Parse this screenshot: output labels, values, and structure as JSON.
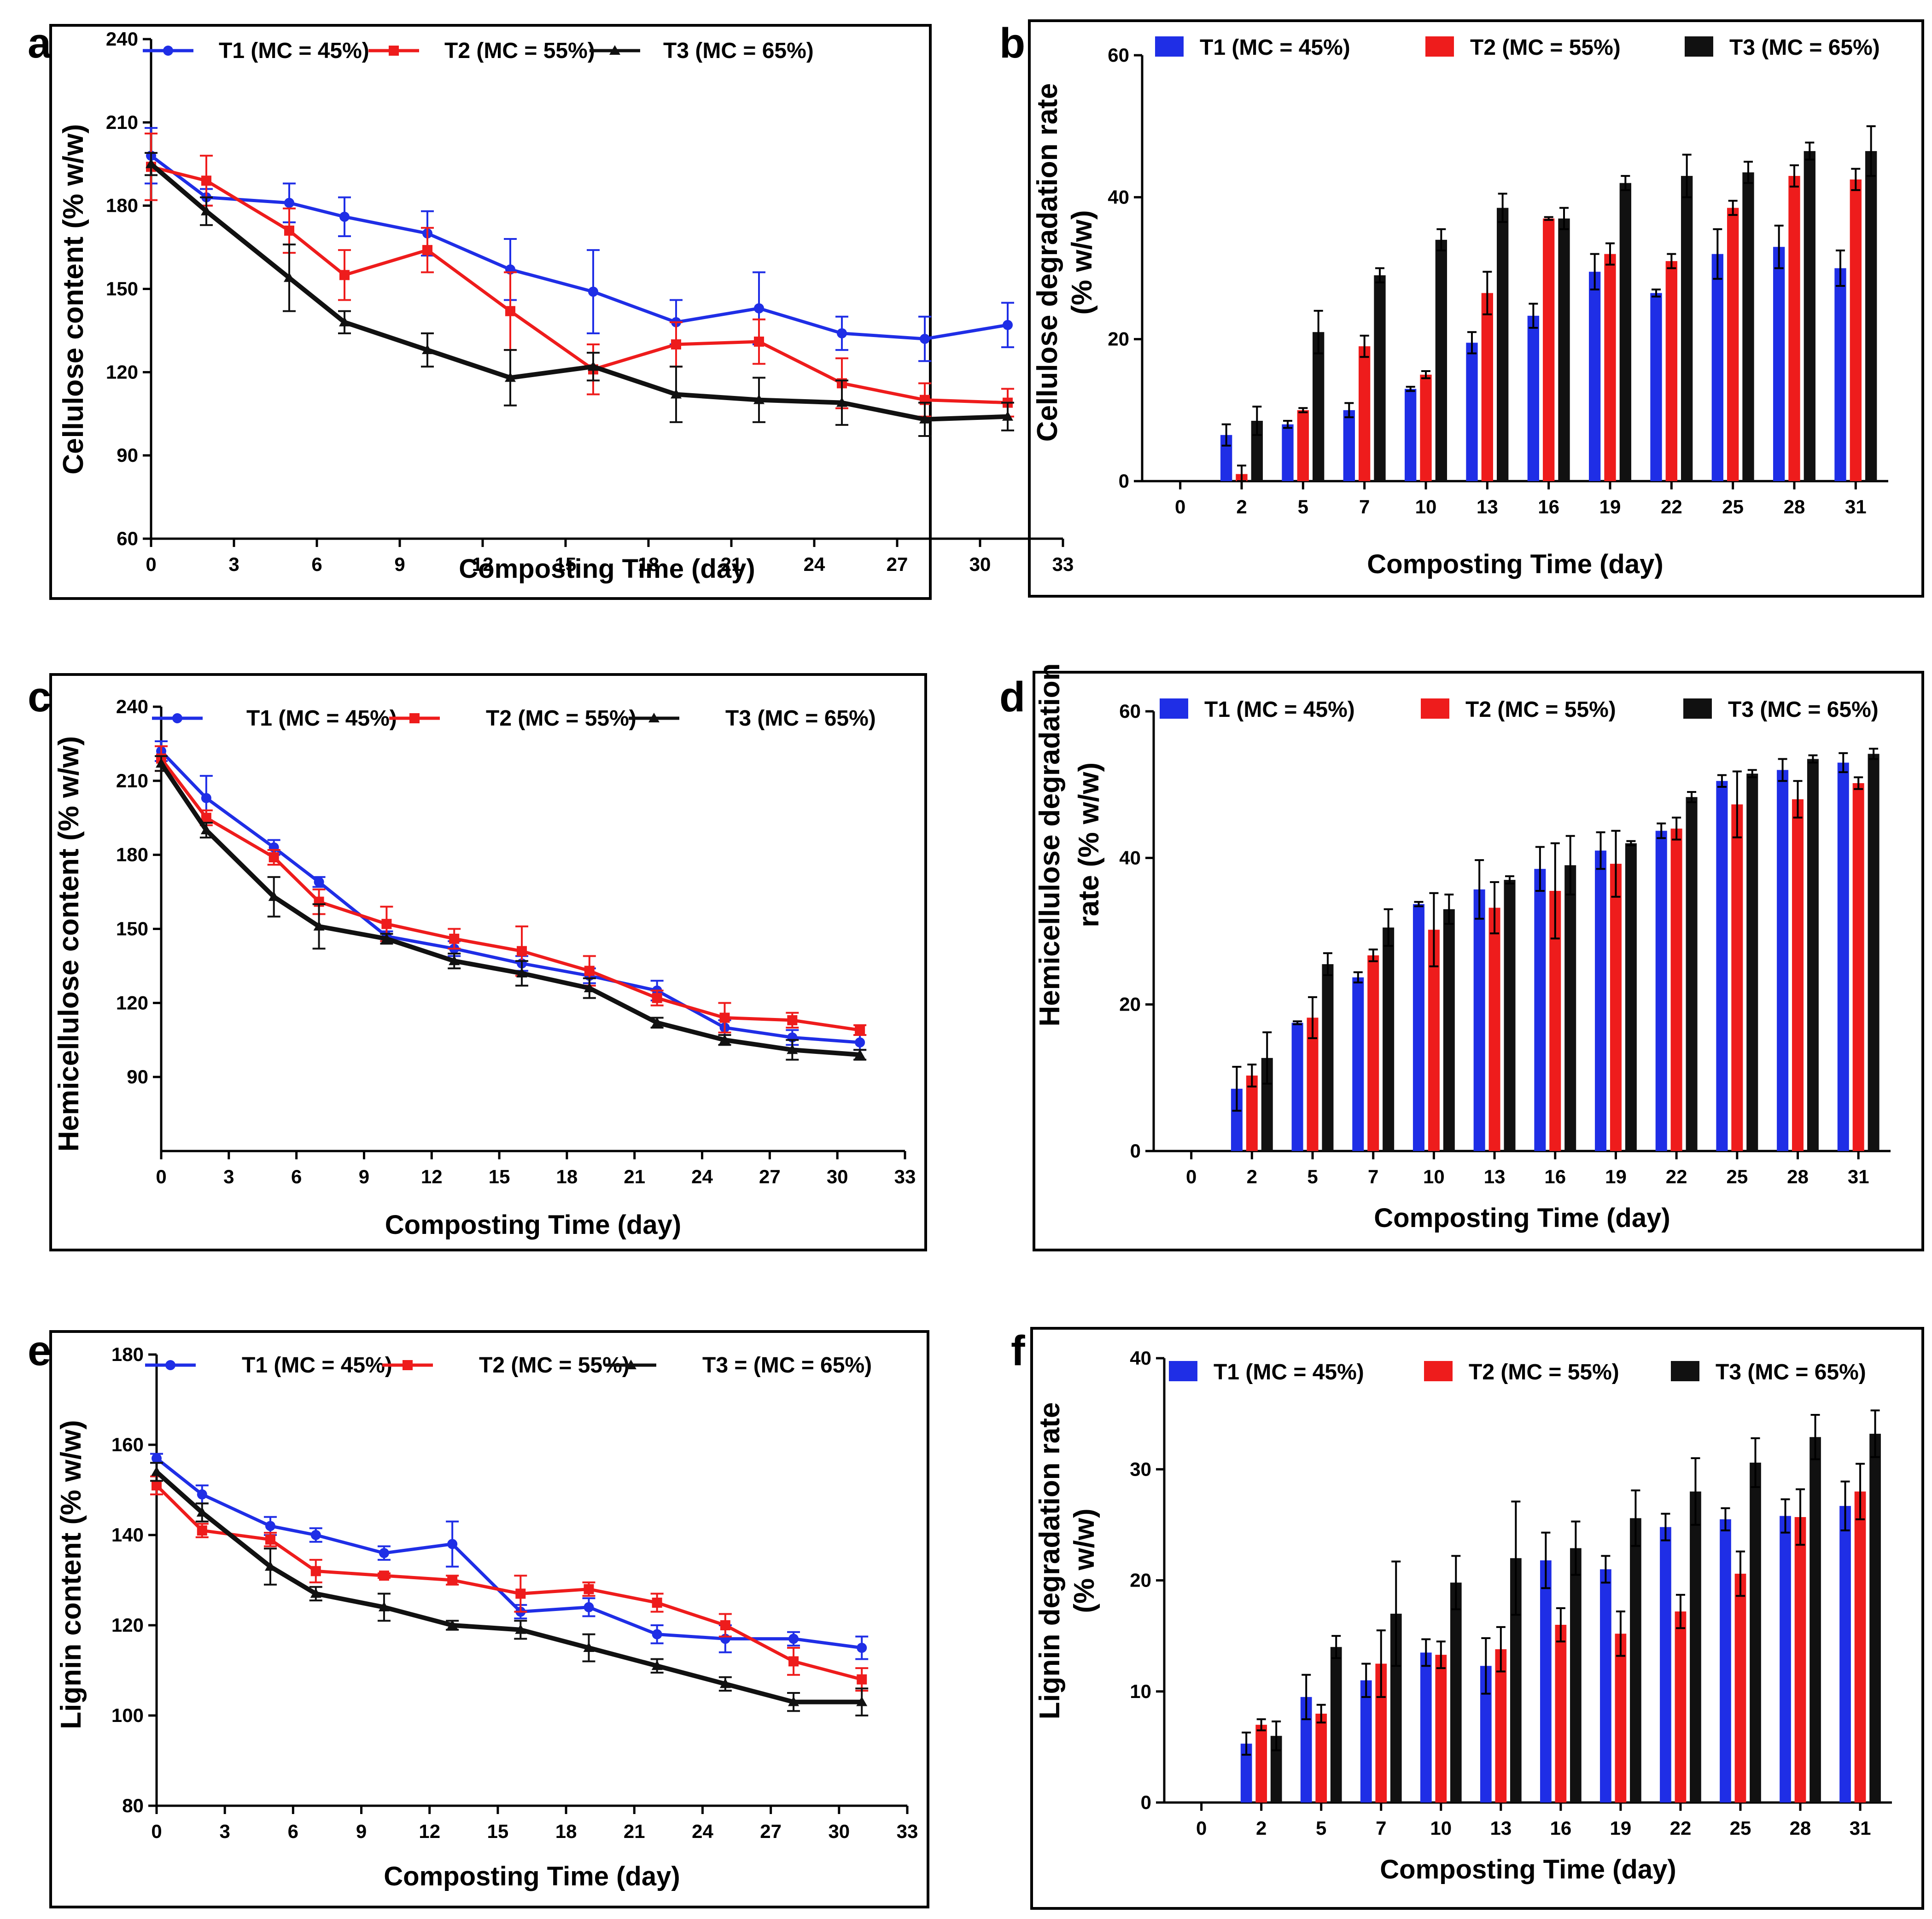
{
  "figure": {
    "colors": {
      "T1": "#1f2ee6",
      "T2": "#ee1c1c",
      "T3": "#111111",
      "axis": "#000000",
      "frame": "#000000"
    }
  },
  "chart_data": [
    {
      "id": "a",
      "panel_letter": "a",
      "type": "line",
      "xlabel": "Composting Time (day)",
      "ylabel": "Cellulose content (% w/w)",
      "xlim": [
        0,
        33
      ],
      "xticks": [
        0,
        3,
        6,
        9,
        12,
        15,
        18,
        21,
        24,
        27,
        30,
        33
      ],
      "ylim": [
        60,
        240
      ],
      "yticks": [
        60,
        90,
        120,
        150,
        180,
        210,
        240
      ],
      "x": [
        0,
        2,
        5,
        7,
        10,
        13,
        16,
        19,
        22,
        25,
        28,
        31
      ],
      "series": [
        {
          "name": "T1 (MC = 45%)",
          "key": "T1",
          "marker": "circle",
          "values": [
            198,
            183,
            181,
            176,
            170,
            157,
            149,
            138,
            143,
            134,
            132,
            137
          ],
          "errors": [
            10,
            3,
            7,
            7,
            8,
            11,
            15,
            8,
            13,
            6,
            8,
            8
          ]
        },
        {
          "name": "T2 (MC = 55%)",
          "key": "T2",
          "marker": "square",
          "values": [
            194,
            189,
            171,
            155,
            164,
            142,
            121,
            130,
            131,
            116,
            110,
            109
          ],
          "errors": [
            12,
            9,
            8,
            9,
            8,
            14,
            9,
            8,
            8,
            9,
            6,
            5
          ]
        },
        {
          "name": "T3 (MC = 65%)",
          "key": "T3",
          "marker": "triangle",
          "values": [
            195,
            178,
            154,
            138,
            128,
            118,
            122,
            112,
            110,
            109,
            103,
            104
          ],
          "errors": [
            4,
            5,
            12,
            4,
            6,
            10,
            5,
            10,
            8,
            8,
            6,
            5
          ]
        }
      ]
    },
    {
      "id": "b",
      "panel_letter": "b",
      "type": "bar",
      "xlabel": "Composting Time (day)",
      "ylabel": [
        "Cellulose degradation rate",
        "(% w/w)"
      ],
      "categories": [
        "0",
        "2",
        "5",
        "7",
        "10",
        "13",
        "16",
        "19",
        "22",
        "25",
        "28",
        "31"
      ],
      "ylim": [
        0,
        60
      ],
      "yticks": [
        0,
        20,
        40,
        60
      ],
      "series": [
        {
          "name": "T1 (MC = 45%)",
          "key": "T1",
          "values": [
            0,
            6.5,
            8,
            10,
            13,
            19.5,
            23.3,
            29.5,
            26.5,
            32,
            33,
            30
          ],
          "errors": [
            0,
            1.5,
            0.5,
            1,
            0.3,
            1.5,
            1.7,
            2.5,
            0.5,
            3.5,
            3,
            2.5
          ]
        },
        {
          "name": "T2 (MC = 55%)",
          "key": "T2",
          "values": [
            0,
            1,
            10,
            19,
            15,
            26.5,
            37,
            32,
            31,
            38.5,
            43,
            42.5
          ],
          "errors": [
            0,
            1.2,
            0.3,
            1.5,
            0.5,
            3,
            0.2,
            1.5,
            1,
            1,
            1.5,
            1.5
          ]
        },
        {
          "name": "T3 (MC = 65%)",
          "key": "T3",
          "values": [
            0,
            8.5,
            21,
            29,
            34,
            38.5,
            37,
            42,
            43,
            43.5,
            46.5,
            46.5
          ],
          "errors": [
            0,
            2,
            3,
            1,
            1.5,
            2,
            1.5,
            1,
            3,
            1.5,
            1.2,
            3.5
          ]
        }
      ]
    },
    {
      "id": "c",
      "panel_letter": "c",
      "type": "line",
      "xlabel": "Composting Time (day)",
      "ylabel": "Hemicellulose content (% w/w)",
      "xlim": [
        0,
        33
      ],
      "xticks": [
        0,
        3,
        6,
        9,
        12,
        15,
        18,
        21,
        24,
        27,
        30,
        33
      ],
      "ylim": [
        60,
        240
      ],
      "yticks": [
        90,
        120,
        150,
        180,
        210,
        240
      ],
      "x": [
        0,
        2,
        5,
        7,
        10,
        13,
        16,
        19,
        22,
        25,
        28,
        31
      ],
      "series": [
        {
          "name": "T1 (MC = 45%)",
          "key": "T1",
          "marker": "circle",
          "values": [
            222,
            203,
            183,
            169,
            147,
            142,
            136,
            131,
            125,
            110,
            106,
            104
          ],
          "errors": [
            4,
            9,
            3,
            2,
            2,
            3,
            3,
            3,
            4,
            3,
            3,
            3
          ]
        },
        {
          "name": "T2 (MC = 55%)",
          "key": "T2",
          "marker": "square",
          "values": [
            219,
            195,
            179,
            161,
            152,
            146,
            141,
            133,
            122,
            114,
            113,
            109
          ],
          "errors": [
            5,
            3,
            3,
            5,
            7,
            4,
            10,
            6,
            3,
            6,
            3,
            2
          ]
        },
        {
          "name": "T3 (MC = 65%)",
          "key": "T3",
          "marker": "triangle",
          "values": [
            217,
            190,
            163,
            151,
            146,
            137,
            132,
            126,
            112,
            105,
            101,
            99
          ],
          "errors": [
            3,
            3,
            8,
            9,
            2,
            3,
            5,
            4,
            2,
            2,
            4,
            2
          ]
        }
      ]
    },
    {
      "id": "d",
      "panel_letter": "d",
      "type": "bar",
      "xlabel": "Composting Time (day)",
      "ylabel": [
        "Hemicellulose degradation",
        "rate (% w/w)"
      ],
      "categories": [
        "0",
        "2",
        "5",
        "7",
        "10",
        "13",
        "16",
        "19",
        "22",
        "25",
        "28",
        "31"
      ],
      "ylim": [
        0,
        60
      ],
      "yticks": [
        0,
        20,
        40,
        60
      ],
      "series": [
        {
          "name": "T1 (MC = 45%)",
          "key": "T1",
          "values": [
            0,
            8.5,
            17.5,
            23.7,
            33.7,
            35.7,
            38.5,
            41,
            43.7,
            50.5,
            52,
            53
          ],
          "errors": [
            0,
            3,
            0.2,
            0.7,
            0.3,
            4,
            3,
            2.5,
            1,
            0.8,
            1.5,
            1.3
          ]
        },
        {
          "name": "T2 (MC = 55%)",
          "key": "T2",
          "values": [
            0,
            10.3,
            18.2,
            26.7,
            30.2,
            33.2,
            35.5,
            39.2,
            44,
            47.3,
            48,
            50.2
          ],
          "errors": [
            0,
            1.5,
            2.8,
            0.8,
            5,
            3.5,
            6.5,
            4.5,
            1.5,
            4.5,
            2.5,
            0.8
          ]
        },
        {
          "name": "T3 (MC = 65%)",
          "key": "T3",
          "values": [
            0,
            12.7,
            25.5,
            30.5,
            33,
            37,
            39,
            42,
            48.3,
            51.5,
            53.5,
            54.2
          ],
          "errors": [
            0,
            3.5,
            1.5,
            2.5,
            2,
            0.5,
            4,
            0.3,
            0.7,
            0.5,
            0.5,
            0.7
          ]
        }
      ]
    },
    {
      "id": "e",
      "panel_letter": "e",
      "type": "line",
      "xlabel": "Composting Time (day)",
      "ylabel": "Lignin content (% w/w)",
      "xlim": [
        0,
        33
      ],
      "xticks": [
        0,
        3,
        6,
        9,
        12,
        15,
        18,
        21,
        24,
        27,
        30,
        33
      ],
      "ylim": [
        80,
        180
      ],
      "yticks": [
        80,
        100,
        120,
        140,
        160,
        180
      ],
      "x": [
        0,
        2,
        5,
        7,
        10,
        13,
        16,
        19,
        22,
        25,
        28,
        31
      ],
      "series": [
        {
          "name": "T1 (MC = 45%)",
          "key": "T1",
          "marker": "circle",
          "values": [
            157,
            149,
            142,
            140,
            136,
            138,
            123,
            124,
            118,
            117,
            117,
            115
          ],
          "errors": [
            1,
            2,
            2,
            1.5,
            1.5,
            5,
            1.5,
            2,
            2,
            3,
            1.5,
            2.5
          ]
        },
        {
          "name": "T2 (MC = 55%)",
          "key": "T2",
          "marker": "square",
          "values": [
            151,
            141,
            139,
            132,
            131,
            130,
            127,
            128,
            125,
            120,
            112,
            108
          ],
          "errors": [
            2,
            1.5,
            1.5,
            2.5,
            0.5,
            1,
            4,
            1.5,
            2,
            2.5,
            3,
            2.5
          ]
        },
        {
          "name": "T3 = (MC = 65%)",
          "key": "T3",
          "marker": "triangle",
          "values": [
            154,
            145,
            133,
            127,
            124,
            120,
            119,
            115,
            111,
            107,
            103,
            103
          ],
          "errors": [
            2,
            2,
            4,
            1.5,
            3,
            1,
            2,
            3,
            1.5,
            1.5,
            2,
            3
          ]
        }
      ]
    },
    {
      "id": "f",
      "panel_letter": "f",
      "type": "bar",
      "xlabel": "Composting Time (day)",
      "ylabel": [
        "Lignin degradation rate",
        "(% w/w)"
      ],
      "categories": [
        "0",
        "2",
        "5",
        "7",
        "10",
        "13",
        "16",
        "19",
        "22",
        "25",
        "28",
        "31"
      ],
      "ylim": [
        0,
        40
      ],
      "yticks": [
        0,
        10,
        20,
        30,
        40
      ],
      "series": [
        {
          "name": "T1 (MC = 45%)",
          "key": "T1",
          "values": [
            0,
            5.3,
            9.5,
            11,
            13.5,
            12.3,
            21.8,
            21,
            24.8,
            25.5,
            25.8,
            26.7
          ],
          "errors": [
            0,
            1,
            2,
            1.5,
            1.2,
            2.5,
            2.5,
            1.2,
            1.2,
            1,
            1.5,
            2.2
          ]
        },
        {
          "name": "T2 (MC = 55%)",
          "key": "T2",
          "values": [
            0,
            7,
            8,
            12.5,
            13.3,
            13.8,
            16,
            15.2,
            17.2,
            20.6,
            25.7,
            28
          ],
          "errors": [
            0,
            0.5,
            0.8,
            3,
            1.2,
            2,
            1.5,
            2,
            1.5,
            2,
            2.5,
            2.5
          ]
        },
        {
          "name": "T3 (MC = 65%)",
          "key": "T3",
          "values": [
            0,
            6,
            14,
            17,
            19.8,
            22,
            22.9,
            25.6,
            28,
            30.6,
            32.9,
            33.2
          ],
          "errors": [
            0,
            1.3,
            1,
            4.7,
            2.4,
            5.1,
            2.4,
            2.5,
            3,
            2.2,
            2,
            2.1
          ]
        }
      ]
    }
  ]
}
